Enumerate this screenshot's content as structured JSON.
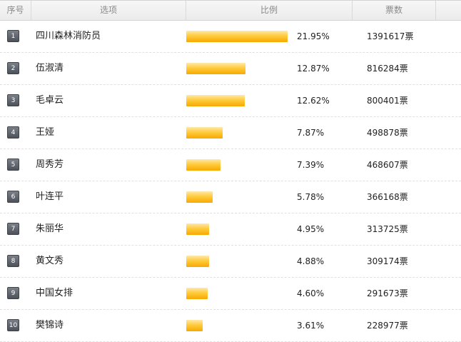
{
  "header": {
    "index_label": "序号",
    "option_label": "选项",
    "ratio_label": "比例",
    "votes_label": "票数"
  },
  "rows": [
    {
      "index": "1",
      "name": "四川森林消防员",
      "percent": "21.95%",
      "ratio": 0.2195,
      "votes": "1391617票"
    },
    {
      "index": "2",
      "name": "伍淑清",
      "percent": "12.87%",
      "ratio": 0.1287,
      "votes": "816284票"
    },
    {
      "index": "3",
      "name": "毛卓云",
      "percent": "12.62%",
      "ratio": 0.1262,
      "votes": "800401票"
    },
    {
      "index": "4",
      "name": "王娅",
      "percent": "7.87%",
      "ratio": 0.0787,
      "votes": "498878票"
    },
    {
      "index": "5",
      "name": "周秀芳",
      "percent": "7.39%",
      "ratio": 0.0739,
      "votes": "468607票"
    },
    {
      "index": "6",
      "name": "叶连平",
      "percent": "5.78%",
      "ratio": 0.0578,
      "votes": "366168票"
    },
    {
      "index": "7",
      "name": "朱丽华",
      "percent": "4.95%",
      "ratio": 0.0495,
      "votes": "313725票"
    },
    {
      "index": "8",
      "name": "黄文秀",
      "percent": "4.88%",
      "ratio": 0.0488,
      "votes": "309174票"
    },
    {
      "index": "9",
      "name": "中国女排",
      "percent": "4.60%",
      "ratio": 0.046,
      "votes": "291673票"
    },
    {
      "index": "10",
      "name": "樊锦诗",
      "percent": "3.61%",
      "ratio": 0.0361,
      "votes": "228977票"
    }
  ],
  "colors": {
    "bar_top": "#ffe9a8",
    "bar_mid": "#ffcb3c",
    "bar_bottom": "#f7a900",
    "badge": "#5a5f67"
  }
}
